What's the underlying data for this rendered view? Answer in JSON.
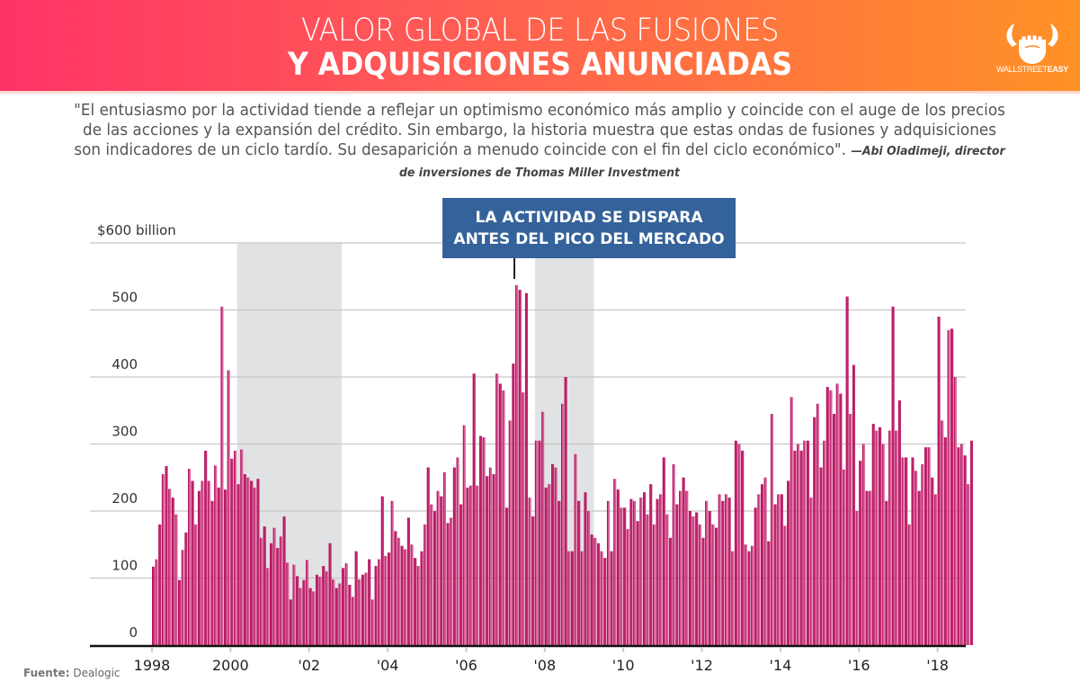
{
  "header": {
    "title_line1": "VALOR GLOBAL DE LAS FUSIONES",
    "title_line2": "Y ADQUISICIONES ANUNCIADAS",
    "logo_text_light": "WALLSTREET",
    "logo_text_bold": "EASY",
    "logo_icon": "bull-horns-fist-icon",
    "gradient_start": "#ff3366",
    "gradient_end": "#ff9226"
  },
  "quote": {
    "text": "\"El entusiasmo por la actividad tiende a reflejar un optimismo económico más amplio y coincide con el auge de los precios de las acciones y la expansión del crédito. Sin embargo, la historia muestra que estas ondas de fusiones y adquisiciones son indicadores de un ciclo tardío. Su desaparición a menudo coincide con el fin del ciclo económico\".",
    "attribution": "—Abi Oladimeji, director de inversiones de Thomas Miller Investment"
  },
  "callout": {
    "line1": "LA ACTIVIDAD SE DISPARA",
    "line2": "ANTES DEL PICO DEL MERCADO",
    "color": "#34629a"
  },
  "source": {
    "label": "Fuente:",
    "value": "Dealogic"
  },
  "chart_data": {
    "type": "bar",
    "title": "Valor global de las fusiones y adquisiciones anunciadas",
    "xlabel": "",
    "ylabel": "$ billion",
    "frequency": "monthly",
    "start": "1998-01",
    "end": "2018-11",
    "ylim": [
      0,
      600
    ],
    "yticks": [
      0,
      100,
      200,
      300,
      400,
      500,
      600
    ],
    "ytick_labels": [
      "0",
      "100",
      "200",
      "300",
      "400",
      "500",
      "$600 billion"
    ],
    "xtick_years": [
      1998,
      2000,
      2002,
      2004,
      2006,
      2008,
      2010,
      2012,
      2014,
      2016,
      2018
    ],
    "xtick_labels": [
      "1998",
      "2000",
      "'02",
      "'04",
      "'06",
      "'08",
      "'10",
      "'12",
      "'14",
      "'16",
      "'18"
    ],
    "grid": true,
    "bar_color": "#c2286e",
    "bar_color_alt": "#d9609a",
    "shaded_periods": [
      {
        "start": "2000-03",
        "end": "2002-10",
        "label": "market downturn"
      },
      {
        "start": "2007-10",
        "end": "2009-03",
        "label": "market downturn"
      }
    ],
    "annotation": {
      "text": "LA ACTIVIDAD SE DISPARA ANTES DEL PICO DEL MERCADO",
      "points_to": "2007-04"
    },
    "values": [
      117,
      128,
      180,
      255,
      267,
      233,
      220,
      195,
      97,
      142,
      168,
      263,
      245,
      180,
      230,
      245,
      290,
      245,
      215,
      268,
      235,
      505,
      232,
      410,
      278,
      290,
      240,
      292,
      255,
      250,
      245,
      235,
      248,
      160,
      177,
      115,
      152,
      175,
      145,
      162,
      192,
      123,
      68,
      120,
      103,
      85,
      97,
      127,
      85,
      80,
      105,
      102,
      118,
      110,
      152,
      98,
      85,
      92,
      115,
      122,
      90,
      72,
      140,
      98,
      105,
      108,
      128,
      68,
      118,
      128,
      222,
      133,
      138,
      215,
      170,
      160,
      148,
      143,
      190,
      150,
      130,
      118,
      140,
      180,
      265,
      210,
      200,
      230,
      222,
      258,
      182,
      190,
      265,
      280,
      210,
      328,
      235,
      238,
      405,
      238,
      312,
      310,
      252,
      265,
      255,
      405,
      390,
      380,
      205,
      335,
      420,
      537,
      530,
      377,
      525,
      220,
      192,
      305,
      305,
      348,
      235,
      240,
      270,
      265,
      215,
      360,
      400,
      140,
      140,
      285,
      215,
      140,
      228,
      200,
      165,
      160,
      152,
      140,
      130,
      215,
      140,
      248,
      232,
      205,
      205,
      173,
      218,
      215,
      185,
      220,
      228,
      195,
      240,
      180,
      218,
      225,
      280,
      195,
      160,
      270,
      210,
      230,
      250,
      230,
      200,
      192,
      198,
      180,
      160,
      215,
      200,
      180,
      175,
      225,
      215,
      225,
      220,
      140,
      305,
      300,
      290,
      150,
      140,
      148,
      205,
      225,
      240,
      250,
      155,
      345,
      210,
      225,
      225,
      178,
      245,
      370,
      290,
      300,
      290,
      305,
      305,
      220,
      340,
      360,
      265,
      305,
      385,
      380,
      345,
      390,
      375,
      262,
      520,
      345,
      418,
      200,
      275,
      300,
      230,
      230,
      330,
      320,
      325,
      300,
      215,
      320,
      505,
      320,
      365,
      280,
      280,
      180,
      280,
      260,
      230,
      270,
      295,
      295,
      250,
      225,
      490,
      335,
      310,
      470,
      472,
      400,
      295,
      300,
      283,
      240,
      305
    ]
  }
}
